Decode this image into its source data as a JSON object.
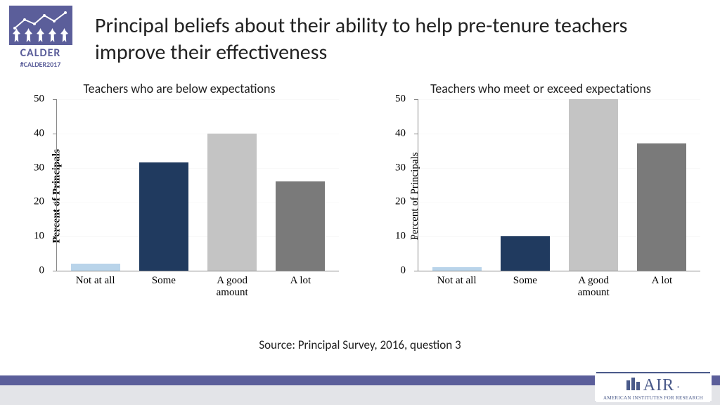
{
  "logo": {
    "brand": "CALDER",
    "hashtag": "#CALDER2017",
    "bg_color": "#5b5e9a"
  },
  "title": "Principal beliefs about their ability to help pre-tenure teachers improve their effectiveness",
  "source": "Source: Principal Survey, 2016, question 3",
  "footer_logo": {
    "text": "AIR",
    "subtitle": "American Institutes for Research",
    "color": "#4a5a8a"
  },
  "chart_common": {
    "type": "bar",
    "ylim": [
      0,
      50
    ],
    "ytick_step": 10,
    "categories": [
      "Not at all",
      "Some",
      "A good\namount",
      "A lot"
    ],
    "bar_colors": [
      "#b9d4ea",
      "#203a5f",
      "#c4c4c4",
      "#7a7a7a"
    ],
    "grid_color": "#d9d9d9",
    "axis_color": "#888888",
    "tick_fontsize": 15,
    "label_fontsize": 15
  },
  "chart_left": {
    "title": "Teachers who are below expectations",
    "ylabel": "Percent of Principals",
    "ylabel_bold": true,
    "values": [
      2,
      31.5,
      40,
      26
    ]
  },
  "chart_right": {
    "title": "Teachers who meet or exceed expectations",
    "ylabel": "Percent of Principals",
    "ylabel_bold": false,
    "values": [
      1,
      10,
      50,
      37
    ]
  }
}
